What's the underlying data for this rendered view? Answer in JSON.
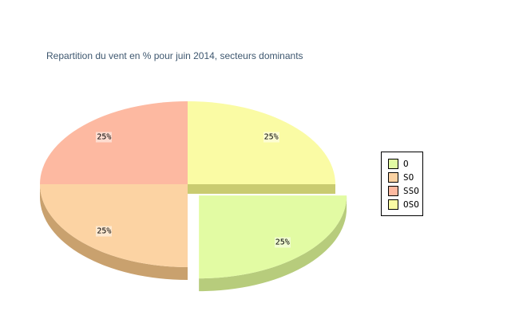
{
  "page": {
    "background": "#FFFFFF"
  },
  "chart_data": {
    "type": "pie",
    "title": "Repartition du vent en % pour juin 2014, secteurs dominants",
    "title_color": "#3E576F",
    "is_3d": true,
    "direction": "clockwise",
    "start_angle_deg": 0,
    "label_text_color": "#000000",
    "label_background": "rgba(255,255,255,0.5)",
    "series": [
      {
        "label": "O",
        "value": 25,
        "display": "25%",
        "color": "#E2FBA3",
        "side_color": "#B7CC7C",
        "exploded": true
      },
      {
        "label": "SO",
        "value": 25,
        "display": "25%",
        "color": "#FCD3A3",
        "side_color": "#C9A16E",
        "exploded": false
      },
      {
        "label": "SSO",
        "value": 25,
        "display": "25%",
        "color": "#FDB9A1",
        "side_color": "#D98F75",
        "exploded": false
      },
      {
        "label": "OSO",
        "value": 25,
        "display": "25%",
        "color": "#FAFBA4",
        "side_color": "#C9CB70",
        "exploded": false
      }
    ],
    "legend": {
      "position": "right",
      "entries": [
        "O",
        "SO",
        "SSO",
        "OSO"
      ],
      "border_color": "#000000",
      "background": "#FFFFFF"
    }
  }
}
